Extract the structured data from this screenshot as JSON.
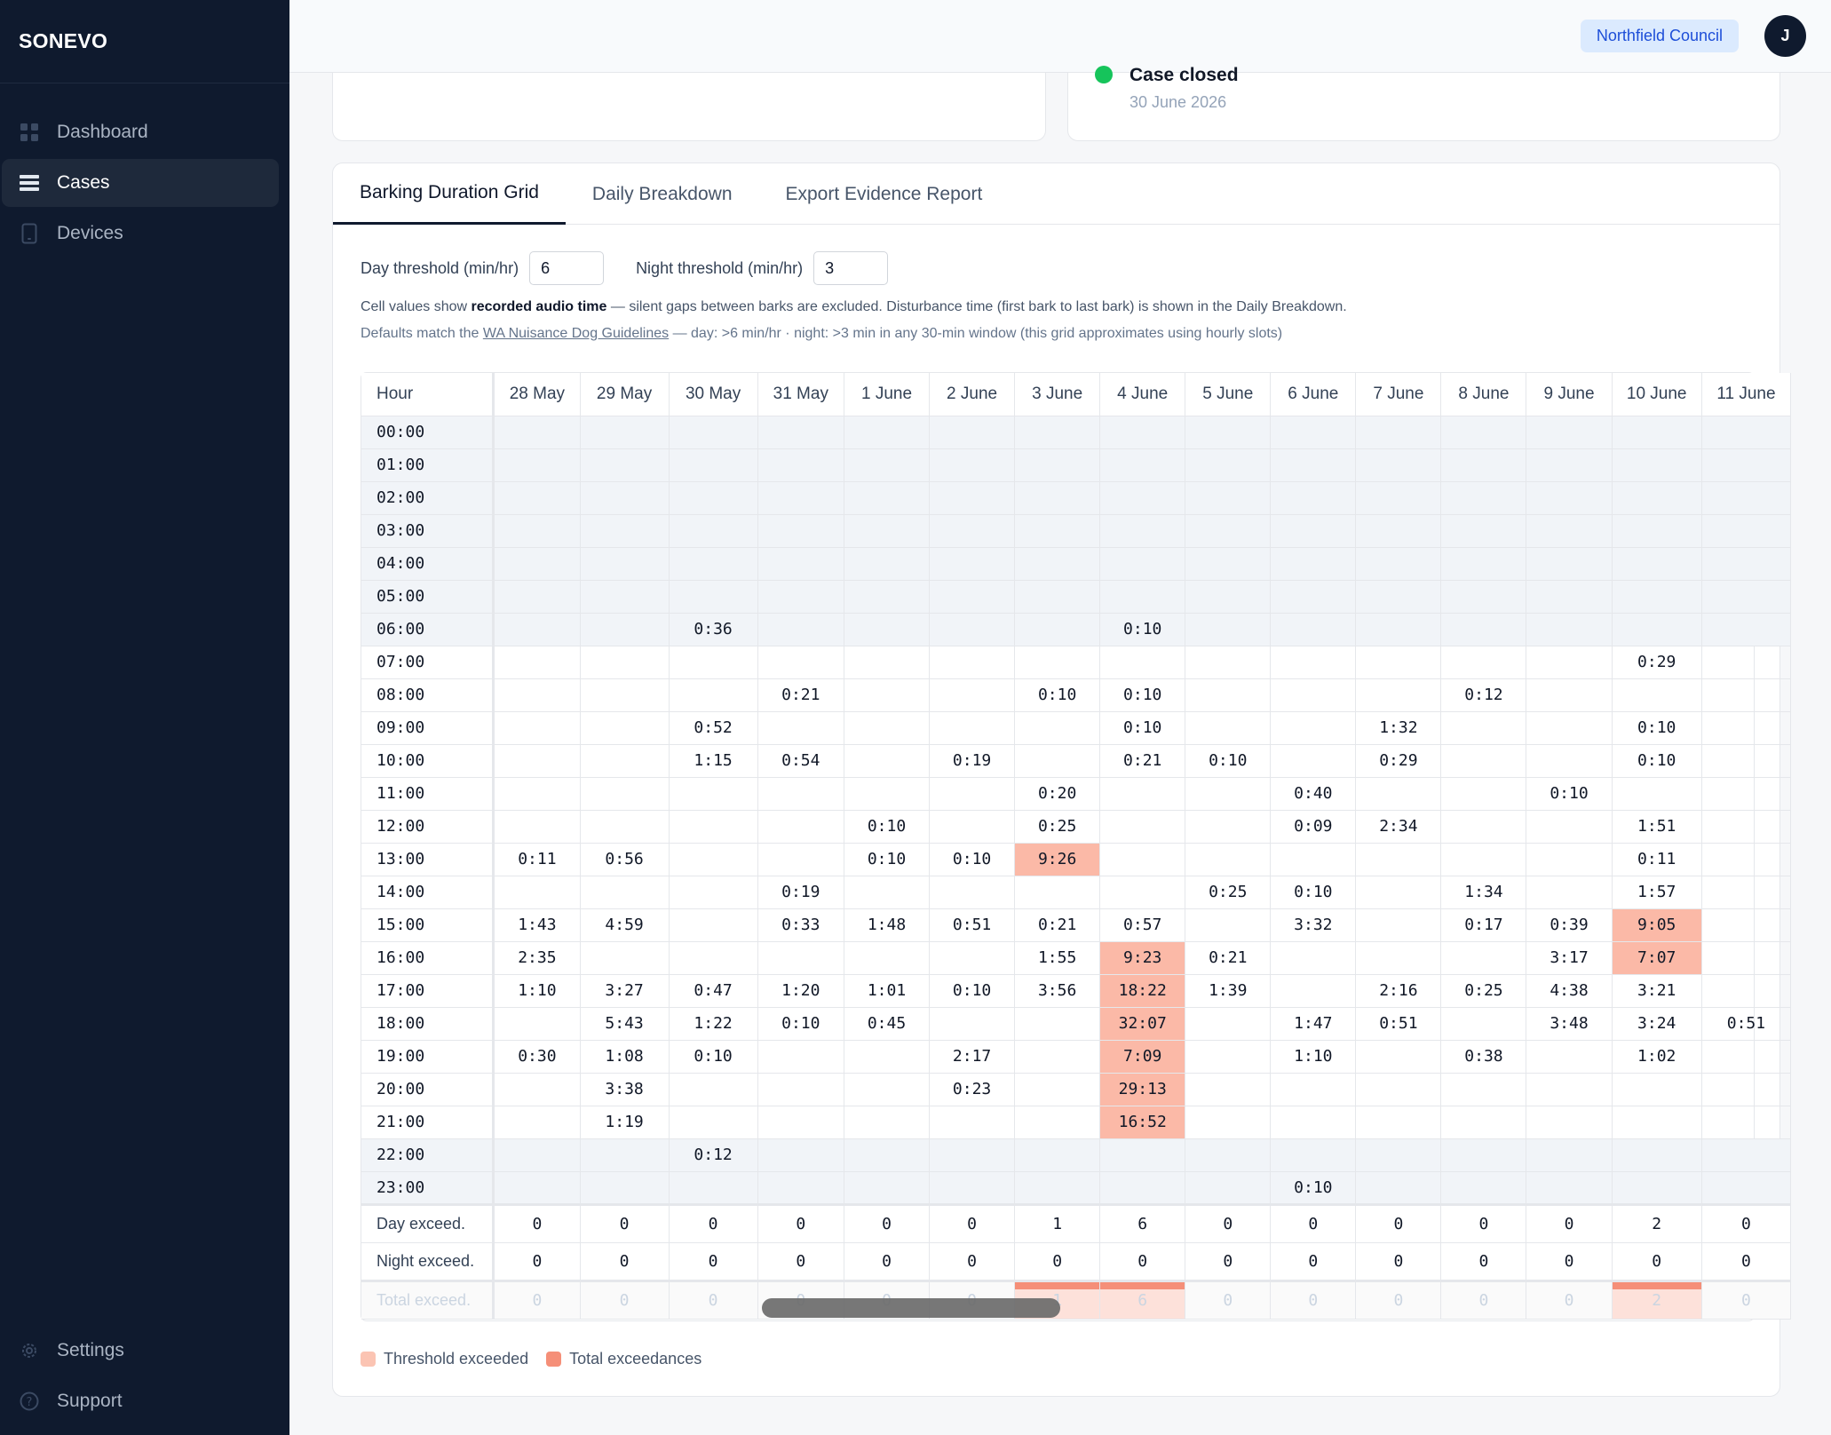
{
  "app": {
    "brand": "SONEVO"
  },
  "sidebar": {
    "items": [
      {
        "label": "Dashboard",
        "icon": "dashboard-icon"
      },
      {
        "label": "Cases",
        "icon": "cases-icon"
      },
      {
        "label": "Devices",
        "icon": "device-icon"
      }
    ],
    "bottom": [
      {
        "label": "Settings",
        "icon": "gear-icon"
      },
      {
        "label": "Support",
        "icon": "help-icon"
      }
    ]
  },
  "header": {
    "org": "Northfield Council",
    "avatar": "J"
  },
  "status": {
    "title": "Case closed",
    "date": "30 June 2026",
    "color": "#16c45b"
  },
  "tabs": [
    "Barking Duration Grid",
    "Daily Breakdown",
    "Export Evidence Report"
  ],
  "controls": {
    "day_label": "Day threshold (min/hr)",
    "day_value": "6",
    "night_label": "Night threshold (min/hr)",
    "night_value": "3"
  },
  "notes": {
    "n1_prefix": "Cell values show ",
    "n1_bold": "recorded audio time",
    "n1_suffix": " — silent gaps between barks are excluded. Disturbance time (first bark to last bark) is shown in the Daily Breakdown.",
    "n2_prefix": "Defaults match the ",
    "n2_link": "WA Nuisance Dog Guidelines",
    "n2_suffix": " — day: >6 min/hr · night: >3 min in any 30-min window (this grid approximates using hourly slots)"
  },
  "grid": {
    "hour_header": "Hour",
    "dates": [
      "28 May",
      "29 May",
      "30 May",
      "31 May",
      "1 June",
      "2 June",
      "3 June",
      "4 June",
      "5 June",
      "6 June",
      "7 June",
      "8 June",
      "9 June",
      "10 June",
      "11 June"
    ],
    "rows": [
      {
        "hour": "00:00",
        "night": true,
        "cells": [
          "",
          "",
          "",
          "",
          "",
          "",
          "",
          "",
          "",
          "",
          "",
          "",
          "",
          "",
          ""
        ]
      },
      {
        "hour": "01:00",
        "night": true,
        "cells": [
          "",
          "",
          "",
          "",
          "",
          "",
          "",
          "",
          "",
          "",
          "",
          "",
          "",
          "",
          ""
        ]
      },
      {
        "hour": "02:00",
        "night": true,
        "cells": [
          "",
          "",
          "",
          "",
          "",
          "",
          "",
          "",
          "",
          "",
          "",
          "",
          "",
          "",
          ""
        ]
      },
      {
        "hour": "03:00",
        "night": true,
        "cells": [
          "",
          "",
          "",
          "",
          "",
          "",
          "",
          "",
          "",
          "",
          "",
          "",
          "",
          "",
          ""
        ]
      },
      {
        "hour": "04:00",
        "night": true,
        "cells": [
          "",
          "",
          "",
          "",
          "",
          "",
          "",
          "",
          "",
          "",
          "",
          "",
          "",
          "",
          ""
        ]
      },
      {
        "hour": "05:00",
        "night": true,
        "cells": [
          "",
          "",
          "",
          "",
          "",
          "",
          "",
          "",
          "",
          "",
          "",
          "",
          "",
          "",
          ""
        ]
      },
      {
        "hour": "06:00",
        "night": true,
        "cells": [
          "",
          "",
          "0:36",
          "",
          "",
          "",
          "",
          "0:10",
          "",
          "",
          "",
          "",
          "",
          "",
          ""
        ]
      },
      {
        "hour": "07:00",
        "night": false,
        "cells": [
          "",
          "",
          "",
          "",
          "",
          "",
          "",
          "",
          "",
          "",
          "",
          "",
          "",
          "0:29",
          ""
        ]
      },
      {
        "hour": "08:00",
        "night": false,
        "cells": [
          "",
          "",
          "",
          "0:21",
          "",
          "",
          "0:10",
          "0:10",
          "",
          "",
          "",
          "0:12",
          "",
          "",
          ""
        ]
      },
      {
        "hour": "09:00",
        "night": false,
        "cells": [
          "",
          "",
          "0:52",
          "",
          "",
          "",
          "",
          "0:10",
          "",
          "",
          "1:32",
          "",
          "",
          "0:10",
          ""
        ]
      },
      {
        "hour": "10:00",
        "night": false,
        "cells": [
          "",
          "",
          "1:15",
          "0:54",
          "",
          "0:19",
          "",
          "0:21",
          "0:10",
          "",
          "0:29",
          "",
          "",
          "0:10",
          ""
        ]
      },
      {
        "hour": "11:00",
        "night": false,
        "cells": [
          "",
          "",
          "",
          "",
          "",
          "",
          "0:20",
          "",
          "",
          "0:40",
          "",
          "",
          "0:10",
          "",
          ""
        ]
      },
      {
        "hour": "12:00",
        "night": false,
        "cells": [
          "",
          "",
          "",
          "",
          "0:10",
          "",
          "0:25",
          "",
          "",
          "0:09",
          "2:34",
          "",
          "",
          "1:51",
          ""
        ]
      },
      {
        "hour": "13:00",
        "night": false,
        "cells": [
          "0:11",
          "0:56",
          "",
          "",
          "0:10",
          "0:10",
          "9:26",
          "",
          "",
          "",
          "",
          "",
          "",
          "0:11",
          ""
        ]
      },
      {
        "hour": "14:00",
        "night": false,
        "cells": [
          "",
          "",
          "",
          "0:19",
          "",
          "",
          "",
          "",
          "0:25",
          "0:10",
          "",
          "1:34",
          "",
          "1:57",
          ""
        ]
      },
      {
        "hour": "15:00",
        "night": false,
        "cells": [
          "1:43",
          "4:59",
          "",
          "0:33",
          "1:48",
          "0:51",
          "0:21",
          "0:57",
          "",
          "3:32",
          "",
          "0:17",
          "0:39",
          "9:05",
          ""
        ]
      },
      {
        "hour": "16:00",
        "night": false,
        "cells": [
          "2:35",
          "",
          "",
          "",
          "",
          "",
          "1:55",
          "9:23",
          "0:21",
          "",
          "",
          "",
          "3:17",
          "7:07",
          ""
        ]
      },
      {
        "hour": "17:00",
        "night": false,
        "cells": [
          "1:10",
          "3:27",
          "0:47",
          "1:20",
          "1:01",
          "0:10",
          "3:56",
          "18:22",
          "1:39",
          "",
          "2:16",
          "0:25",
          "4:38",
          "3:21",
          ""
        ]
      },
      {
        "hour": "18:00",
        "night": false,
        "cells": [
          "",
          "5:43",
          "1:22",
          "0:10",
          "0:45",
          "",
          "",
          "32:07",
          "",
          "1:47",
          "0:51",
          "",
          "3:48",
          "3:24",
          "0:51"
        ]
      },
      {
        "hour": "19:00",
        "night": false,
        "cells": [
          "0:30",
          "1:08",
          "0:10",
          "",
          "",
          "2:17",
          "",
          "7:09",
          "",
          "1:10",
          "",
          "0:38",
          "",
          "1:02",
          ""
        ]
      },
      {
        "hour": "20:00",
        "night": false,
        "cells": [
          "",
          "3:38",
          "",
          "",
          "",
          "0:23",
          "",
          "29:13",
          "",
          "",
          "",
          "",
          "",
          "",
          ""
        ]
      },
      {
        "hour": "21:00",
        "night": false,
        "cells": [
          "",
          "1:19",
          "",
          "",
          "",
          "",
          "",
          "16:52",
          "",
          "",
          "",
          "",
          "",
          "",
          ""
        ]
      },
      {
        "hour": "22:00",
        "night": true,
        "cells": [
          "",
          "",
          "0:12",
          "",
          "",
          "",
          "",
          "",
          "",
          "",
          "",
          "",
          "",
          "",
          ""
        ]
      },
      {
        "hour": "23:00",
        "night": true,
        "cells": [
          "",
          "",
          "",
          "",
          "",
          "",
          "",
          "",
          "",
          "0:10",
          "",
          "",
          "",
          "",
          ""
        ]
      }
    ],
    "exceeded": [
      "13:00|6",
      "16:00|7",
      "17:00|7",
      "18:00|7",
      "19:00|7",
      "20:00|7",
      "21:00|7",
      "15:00|13",
      "16:00|13"
    ],
    "day_exceed": {
      "label": "Day exceed.",
      "values": [
        "0",
        "0",
        "0",
        "0",
        "0",
        "0",
        "1",
        "6",
        "0",
        "0",
        "0",
        "0",
        "0",
        "2",
        "0"
      ]
    },
    "night_exceed": {
      "label": "Night exceed.",
      "values": [
        "0",
        "0",
        "0",
        "0",
        "0",
        "0",
        "0",
        "0",
        "0",
        "0",
        "0",
        "0",
        "0",
        "0",
        "0"
      ]
    },
    "total_exceed": {
      "label": "Total exceed.",
      "values": [
        "0",
        "0",
        "0",
        "0",
        "0",
        "0",
        "1",
        "6",
        "0",
        "0",
        "0",
        "0",
        "0",
        "2",
        "0"
      ]
    }
  },
  "legend": [
    {
      "label": "Threshold exceeded",
      "color": "#fbc4b3"
    },
    {
      "label": "Total exceedances",
      "color": "#f58f78"
    }
  ]
}
